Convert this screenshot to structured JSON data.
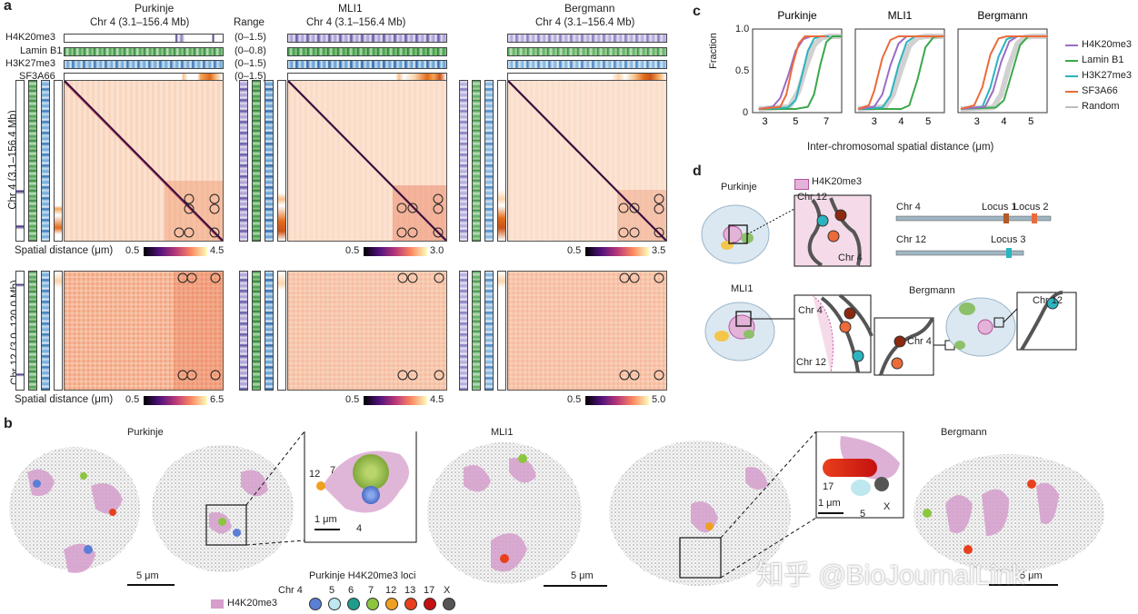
{
  "panel_a": {
    "letter": "a",
    "range_header": "Range",
    "cell_types": [
      "Purkinje",
      "MLI1",
      "Bergmann"
    ],
    "chr4_range": "Chr 4 (3.1–156.4 Mb)",
    "tracks": [
      {
        "name": "H4K20me3",
        "range": "(0–1.5)",
        "color": "#4a3a8c"
      },
      {
        "name": "Lamin B1",
        "range": "(0–0.8)",
        "color": "#2e8b3a"
      },
      {
        "name": "H3K27me3",
        "range": "(0–1.5)",
        "color": "#1f6fb4"
      },
      {
        "name": "SF3A66",
        "range": "(0–1.5)",
        "color": "#e36a1a"
      }
    ],
    "row_labels": [
      "Chr 4 (3.1–156.4 Mb)",
      "Chr 12 (3.0–120.0 Mb)"
    ],
    "colorbar_label": "Spatial distance (μm)",
    "colorbars_chr4": [
      {
        "min": "0.5",
        "max": "4.5"
      },
      {
        "min": "0.5",
        "max": "3.0"
      },
      {
        "min": "0.5",
        "max": "3.5"
      }
    ],
    "colorbars_chr12": [
      {
        "min": "0.5",
        "max": "6.5"
      },
      {
        "min": "0.5",
        "max": "4.5"
      },
      {
        "min": "0.5",
        "max": "5.0"
      }
    ]
  },
  "panel_b": {
    "letter": "b",
    "titles": [
      "Purkinje",
      "MLI1",
      "Bergmann"
    ],
    "inset1_labels": [
      "7",
      "12",
      "4"
    ],
    "inset2_labels": [
      "17",
      "5",
      "X"
    ],
    "scale_labels": [
      "5 μm",
      "1 μm",
      "5 μm",
      "1 μm",
      "5 μm"
    ],
    "legend_h4": "H4K20me3",
    "loci_title": "Purkinje H4K20me3 loci",
    "chr_prefix": "Chr 4",
    "chr_list": [
      "5",
      "6",
      "7",
      "12",
      "13",
      "17",
      "X"
    ],
    "chr_colors": [
      "#5b7fd6",
      "#bfe7f0",
      "#1f9c8c",
      "#8cc63f",
      "#f0a020",
      "#e8401c",
      "#c41010",
      "#555555"
    ],
    "watermark": "知乎 @BioJournalLink"
  },
  "panel_c": {
    "letter": "c",
    "ylabel": "Fraction",
    "xlabel": "Inter-chromosomal spatial distance (μm)",
    "yticks": [
      "0",
      "0.5",
      "1.0"
    ],
    "titles": [
      "Purkinje",
      "MLI1",
      "Bergmann"
    ],
    "legend": [
      {
        "name": "H4K20me3",
        "color": "#9b6cc6"
      },
      {
        "name": "Lamin B1",
        "color": "#3aa84a"
      },
      {
        "name": "H3K27me3",
        "color": "#2bb3c0"
      },
      {
        "name": "SF3A66",
        "color": "#ec6b3a"
      },
      {
        "name": "Random",
        "color": "#bdbdbd"
      }
    ]
  },
  "chart_data": [
    {
      "type": "line",
      "title": "Purkinje",
      "xlabel": "Inter-chromosomal spatial distance (μm)",
      "ylabel": "Fraction",
      "xticks": [
        3,
        5,
        7
      ],
      "xlim": [
        2.2,
        8.0
      ],
      "ylim": [
        0,
        1.0
      ],
      "series": [
        {
          "name": "H4K20me3",
          "x": [
            2.6,
            3.5,
            4.0,
            4.5,
            5.0,
            5.5,
            6.0,
            7.0
          ],
          "y": [
            0,
            0.03,
            0.15,
            0.45,
            0.8,
            0.96,
            1.0,
            1.0
          ]
        },
        {
          "name": "Lamin B1",
          "x": [
            2.6,
            5.0,
            5.8,
            6.2,
            6.6,
            7.0,
            7.4,
            8.0
          ],
          "y": [
            0,
            0,
            0.03,
            0.2,
            0.6,
            0.92,
            1.0,
            1.0
          ]
        },
        {
          "name": "H3K27me3",
          "x": [
            2.6,
            4.5,
            5.0,
            5.4,
            5.8,
            6.2,
            6.6,
            7.2
          ],
          "y": [
            0,
            0.02,
            0.12,
            0.45,
            0.8,
            0.97,
            1.0,
            1.0
          ]
        },
        {
          "name": "SF3A66",
          "x": [
            2.6,
            4.0,
            4.4,
            4.8,
            5.2,
            5.6,
            6.0,
            7.0
          ],
          "y": [
            0,
            0.03,
            0.2,
            0.6,
            0.9,
            1.0,
            1.0,
            1.0
          ]
        },
        {
          "name": "Random",
          "x": [
            2.6,
            4.6,
            5.2,
            5.7,
            6.2,
            6.7,
            7.2,
            8.0
          ],
          "y": [
            0,
            0.03,
            0.25,
            0.6,
            0.88,
            0.98,
            1.0,
            1.0
          ]
        }
      ]
    },
    {
      "type": "line",
      "title": "MLI1",
      "xlabel": "Inter-chromosomal spatial distance (μm)",
      "ylabel": "Fraction",
      "xticks": [
        3,
        4,
        5
      ],
      "xlim": [
        2.3,
        5.6
      ],
      "ylim": [
        0,
        1.0
      ],
      "series": [
        {
          "name": "H4K20me3",
          "x": [
            2.4,
            3.0,
            3.3,
            3.6,
            3.9,
            4.2,
            4.5,
            5.6
          ],
          "y": [
            0,
            0.03,
            0.2,
            0.6,
            0.9,
            1.0,
            1.0,
            1.0
          ]
        },
        {
          "name": "Lamin B1",
          "x": [
            2.4,
            4.0,
            4.3,
            4.6,
            4.9,
            5.2,
            5.5,
            5.6
          ],
          "y": [
            0,
            0,
            0.05,
            0.4,
            0.85,
            0.99,
            1.0,
            1.0
          ]
        },
        {
          "name": "H3K27me3",
          "x": [
            2.4,
            3.3,
            3.6,
            3.9,
            4.2,
            4.5,
            4.8,
            5.6
          ],
          "y": [
            0,
            0.02,
            0.18,
            0.6,
            0.92,
            1.0,
            1.0,
            1.0
          ]
        },
        {
          "name": "SF3A66",
          "x": [
            2.4,
            2.8,
            3.0,
            3.3,
            3.6,
            3.9,
            4.2,
            5.6
          ],
          "y": [
            0,
            0.05,
            0.25,
            0.7,
            0.95,
            1.0,
            1.0,
            1.0
          ]
        },
        {
          "name": "Random",
          "x": [
            2.4,
            3.4,
            3.7,
            4.0,
            4.3,
            4.6,
            4.9,
            5.6
          ],
          "y": [
            0,
            0.03,
            0.2,
            0.55,
            0.87,
            0.98,
            1.0,
            1.0
          ]
        }
      ]
    },
    {
      "type": "line",
      "title": "Bergmann",
      "xlabel": "Inter-chromosomal spatial distance (μm)",
      "ylabel": "Fraction",
      "xticks": [
        3,
        4,
        5
      ],
      "xlim": [
        2.3,
        5.6
      ],
      "ylim": [
        0,
        1.0
      ],
      "series": [
        {
          "name": "H4K20me3",
          "x": [
            2.4,
            3.3,
            3.6,
            3.9,
            4.2,
            4.5,
            4.8,
            5.6
          ],
          "y": [
            0,
            0.03,
            0.25,
            0.65,
            0.93,
            1.0,
            1.0,
            1.0
          ]
        },
        {
          "name": "Lamin B1",
          "x": [
            2.4,
            3.7,
            4.0,
            4.3,
            4.6,
            4.9,
            5.2,
            5.6
          ],
          "y": [
            0,
            0.02,
            0.12,
            0.5,
            0.88,
            1.0,
            1.0,
            1.0
          ]
        },
        {
          "name": "H3K27me3",
          "x": [
            2.4,
            3.2,
            3.5,
            3.8,
            4.1,
            4.4,
            4.7,
            5.6
          ],
          "y": [
            0,
            0.03,
            0.3,
            0.72,
            0.96,
            1.0,
            1.0,
            1.0
          ]
        },
        {
          "name": "SF3A66",
          "x": [
            2.4,
            2.9,
            3.2,
            3.5,
            3.8,
            4.1,
            4.4,
            5.6
          ],
          "y": [
            0,
            0.05,
            0.3,
            0.75,
            0.97,
            1.0,
            1.0,
            1.0
          ]
        },
        {
          "name": "Random",
          "x": [
            2.4,
            3.6,
            3.9,
            4.2,
            4.5,
            4.8,
            5.1,
            5.6
          ],
          "y": [
            0,
            0.02,
            0.2,
            0.6,
            0.9,
            0.99,
            1.0,
            1.0
          ]
        }
      ]
    }
  ],
  "panel_d": {
    "letter": "d",
    "legend": "H4K20me3",
    "purkinje_label": "Purkinje",
    "mli1_label": "MLI1",
    "bergmann_label": "Bergmann",
    "zoom_labels": [
      "Chr 12",
      "Chr 4",
      "Chr 4",
      "Chr 12",
      "Chr 4",
      "Chr 12"
    ],
    "chr4_line": "Chr 4",
    "chr12_line": "Chr 12",
    "locus1": "Locus 1",
    "locus2": "Locus 2",
    "locus3": "Locus 3"
  }
}
